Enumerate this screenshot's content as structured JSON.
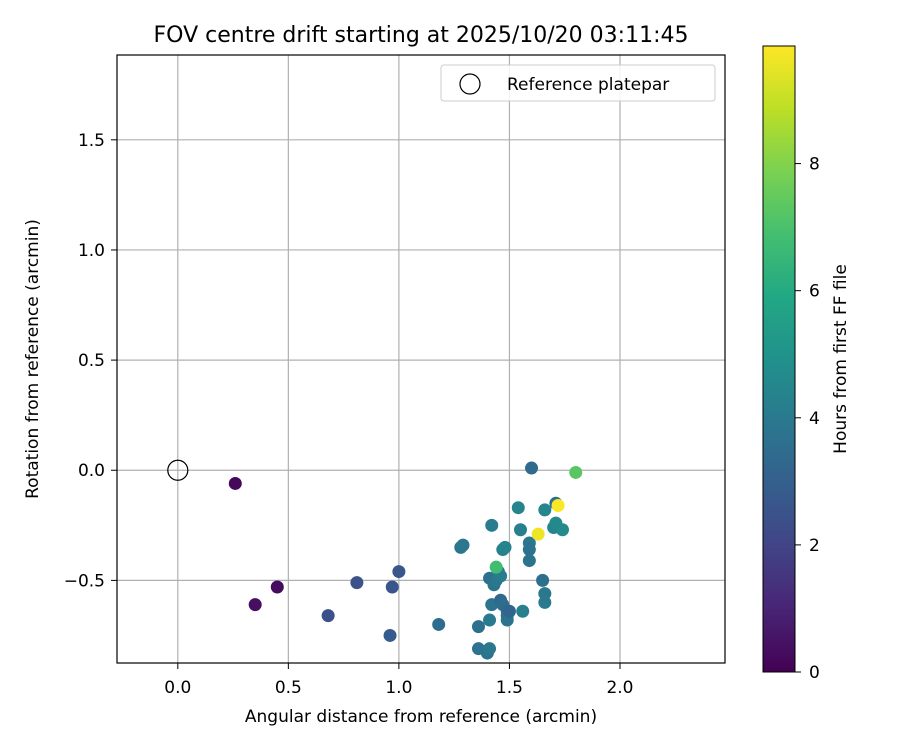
{
  "chart_data": {
    "type": "scatter",
    "title": "FOV centre drift starting at 2025/10/20 03:11:45",
    "xlabel": "Angular distance from reference (arcmin)",
    "ylabel": "Rotation from reference (arcmin)",
    "xlim": [
      -0.275,
      2.475
    ],
    "ylim": [
      -0.875,
      1.885
    ],
    "x_ticks": [
      0.0,
      0.5,
      1.0,
      1.5,
      2.0
    ],
    "x_tick_labels": [
      "0.0",
      "0.5",
      "1.0",
      "1.5",
      "2.0"
    ],
    "y_ticks": [
      -0.5,
      0.0,
      0.5,
      1.0,
      1.5
    ],
    "y_tick_labels": [
      "−0.5",
      "0.0",
      "0.5",
      "1.0",
      "1.5"
    ],
    "grid": true,
    "legend": {
      "position": "top-right",
      "entries": [
        "Reference platepar"
      ]
    },
    "reference_point": {
      "x": 0.0,
      "y": 0.0,
      "label": "Reference platepar"
    },
    "colorbar": {
      "label": "Hours from first FF file",
      "colormap": "viridis",
      "range": [
        0,
        9.85
      ],
      "ticks": [
        0,
        2,
        4,
        6,
        8
      ],
      "tick_labels": [
        "0",
        "2",
        "4",
        "6",
        "8"
      ]
    },
    "points": [
      {
        "x": 0.26,
        "y": -0.06,
        "c": 0.2
      },
      {
        "x": 0.45,
        "y": -0.53,
        "c": 0.3
      },
      {
        "x": 0.35,
        "y": -0.61,
        "c": 0.4
      },
      {
        "x": 0.68,
        "y": -0.66,
        "c": 2.4
      },
      {
        "x": 0.81,
        "y": -0.51,
        "c": 2.5
      },
      {
        "x": 0.97,
        "y": -0.53,
        "c": 2.6
      },
      {
        "x": 1.0,
        "y": -0.46,
        "c": 2.7
      },
      {
        "x": 0.96,
        "y": -0.75,
        "c": 2.8
      },
      {
        "x": 1.18,
        "y": -0.7,
        "c": 3.5
      },
      {
        "x": 1.28,
        "y": -0.35,
        "c": 3.8
      },
      {
        "x": 1.29,
        "y": -0.34,
        "c": 3.9
      },
      {
        "x": 1.36,
        "y": -0.71,
        "c": 3.6
      },
      {
        "x": 1.36,
        "y": -0.81,
        "c": 3.7
      },
      {
        "x": 1.4,
        "y": -0.83,
        "c": 3.8
      },
      {
        "x": 1.41,
        "y": -0.81,
        "c": 3.9
      },
      {
        "x": 1.41,
        "y": -0.68,
        "c": 4.0
      },
      {
        "x": 1.41,
        "y": -0.49,
        "c": 3.6
      },
      {
        "x": 1.42,
        "y": -0.25,
        "c": 4.1
      },
      {
        "x": 1.42,
        "y": -0.61,
        "c": 3.7
      },
      {
        "x": 1.43,
        "y": -0.52,
        "c": 3.8
      },
      {
        "x": 1.44,
        "y": -0.5,
        "c": 3.9
      },
      {
        "x": 1.45,
        "y": -0.46,
        "c": 4.2
      },
      {
        "x": 1.46,
        "y": -0.48,
        "c": 4.1
      },
      {
        "x": 1.46,
        "y": -0.59,
        "c": 3.3
      },
      {
        "x": 1.47,
        "y": -0.61,
        "c": 3.5
      },
      {
        "x": 1.47,
        "y": -0.36,
        "c": 4.3
      },
      {
        "x": 1.48,
        "y": -0.35,
        "c": 4.4
      },
      {
        "x": 1.49,
        "y": -0.64,
        "c": 3.4
      },
      {
        "x": 1.49,
        "y": -0.66,
        "c": 3.6
      },
      {
        "x": 1.49,
        "y": -0.68,
        "c": 3.8
      },
      {
        "x": 1.5,
        "y": -0.64,
        "c": 3.2
      },
      {
        "x": 1.54,
        "y": -0.17,
        "c": 4.4
      },
      {
        "x": 1.55,
        "y": -0.27,
        "c": 4.2
      },
      {
        "x": 1.56,
        "y": -0.64,
        "c": 4.3
      },
      {
        "x": 1.59,
        "y": -0.33,
        "c": 3.9
      },
      {
        "x": 1.59,
        "y": -0.36,
        "c": 3.7
      },
      {
        "x": 1.59,
        "y": -0.41,
        "c": 3.8
      },
      {
        "x": 1.6,
        "y": 0.01,
        "c": 3.4
      },
      {
        "x": 1.65,
        "y": -0.5,
        "c": 3.6
      },
      {
        "x": 1.66,
        "y": -0.56,
        "c": 3.9
      },
      {
        "x": 1.66,
        "y": -0.6,
        "c": 4.0
      },
      {
        "x": 1.66,
        "y": -0.18,
        "c": 4.5
      },
      {
        "x": 1.7,
        "y": -0.26,
        "c": 4.4
      },
      {
        "x": 1.71,
        "y": -0.24,
        "c": 4.6
      },
      {
        "x": 1.71,
        "y": -0.15,
        "c": 3.5
      },
      {
        "x": 1.74,
        "y": -0.27,
        "c": 4.7
      },
      {
        "x": 1.44,
        "y": -0.44,
        "c": 6.8
      },
      {
        "x": 1.8,
        "y": -0.01,
        "c": 7.3
      },
      {
        "x": 1.63,
        "y": -0.29,
        "c": 9.6
      },
      {
        "x": 1.72,
        "y": -0.16,
        "c": 9.8
      }
    ]
  }
}
